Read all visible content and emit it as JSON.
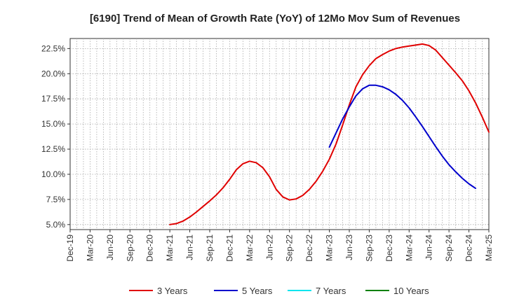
{
  "chart_data": {
    "type": "line",
    "title": "[6190]  Trend of Mean of Growth Rate (YoY) of 12Mo Mov Sum of Revenues",
    "xlabel": "",
    "ylabel": "",
    "ylim": [
      4.5,
      23.5
    ],
    "y_ticks": [
      5.0,
      7.5,
      10.0,
      12.5,
      15.0,
      17.5,
      20.0,
      22.5
    ],
    "y_tick_labels": [
      "5.0%",
      "7.5%",
      "10.0%",
      "12.5%",
      "15.0%",
      "17.5%",
      "20.0%",
      "22.5%"
    ],
    "x_tick_labels": [
      "Dec-19",
      "Mar-20",
      "Jun-20",
      "Sep-20",
      "Dec-20",
      "Mar-21",
      "Jun-21",
      "Sep-21",
      "Dec-21",
      "Mar-22",
      "Jun-22",
      "Sep-22",
      "Dec-22",
      "Mar-23",
      "Jun-23",
      "Sep-23",
      "Dec-23",
      "Mar-24",
      "Jun-24",
      "Sep-24",
      "Dec-24",
      "Mar-25"
    ],
    "grid": true,
    "legend_position": "bottom",
    "series": [
      {
        "name": "3 Years",
        "color": "#e00000",
        "start_index": 15,
        "values": [
          5.0,
          5.1,
          5.35,
          5.75,
          6.25,
          6.8,
          7.35,
          7.95,
          8.65,
          9.5,
          10.45,
          11.05,
          11.3,
          11.15,
          10.65,
          9.75,
          8.5,
          7.75,
          7.45,
          7.55,
          7.9,
          8.5,
          9.3,
          10.3,
          11.5,
          13.0,
          14.9,
          16.9,
          18.7,
          19.9,
          20.8,
          21.5,
          21.9,
          22.25,
          22.5,
          22.65,
          22.75,
          22.85,
          22.95,
          22.8,
          22.35,
          21.6,
          20.85,
          20.1,
          19.3,
          18.3,
          17.1,
          15.7,
          14.2
        ]
      },
      {
        "name": "5 Years",
        "color": "#0000cc",
        "start_index": 39,
        "values": [
          12.7,
          14.1,
          15.5,
          16.7,
          17.8,
          18.5,
          18.85,
          18.85,
          18.7,
          18.4,
          17.95,
          17.35,
          16.6,
          15.7,
          14.75,
          13.75,
          12.75,
          11.8,
          10.95,
          10.25,
          9.6,
          9.05,
          8.6
        ]
      },
      {
        "name": "7 Years",
        "color": "#00e5ee",
        "start_index": 0,
        "values": []
      },
      {
        "name": "10 Years",
        "color": "#008000",
        "start_index": 0,
        "values": []
      }
    ]
  }
}
